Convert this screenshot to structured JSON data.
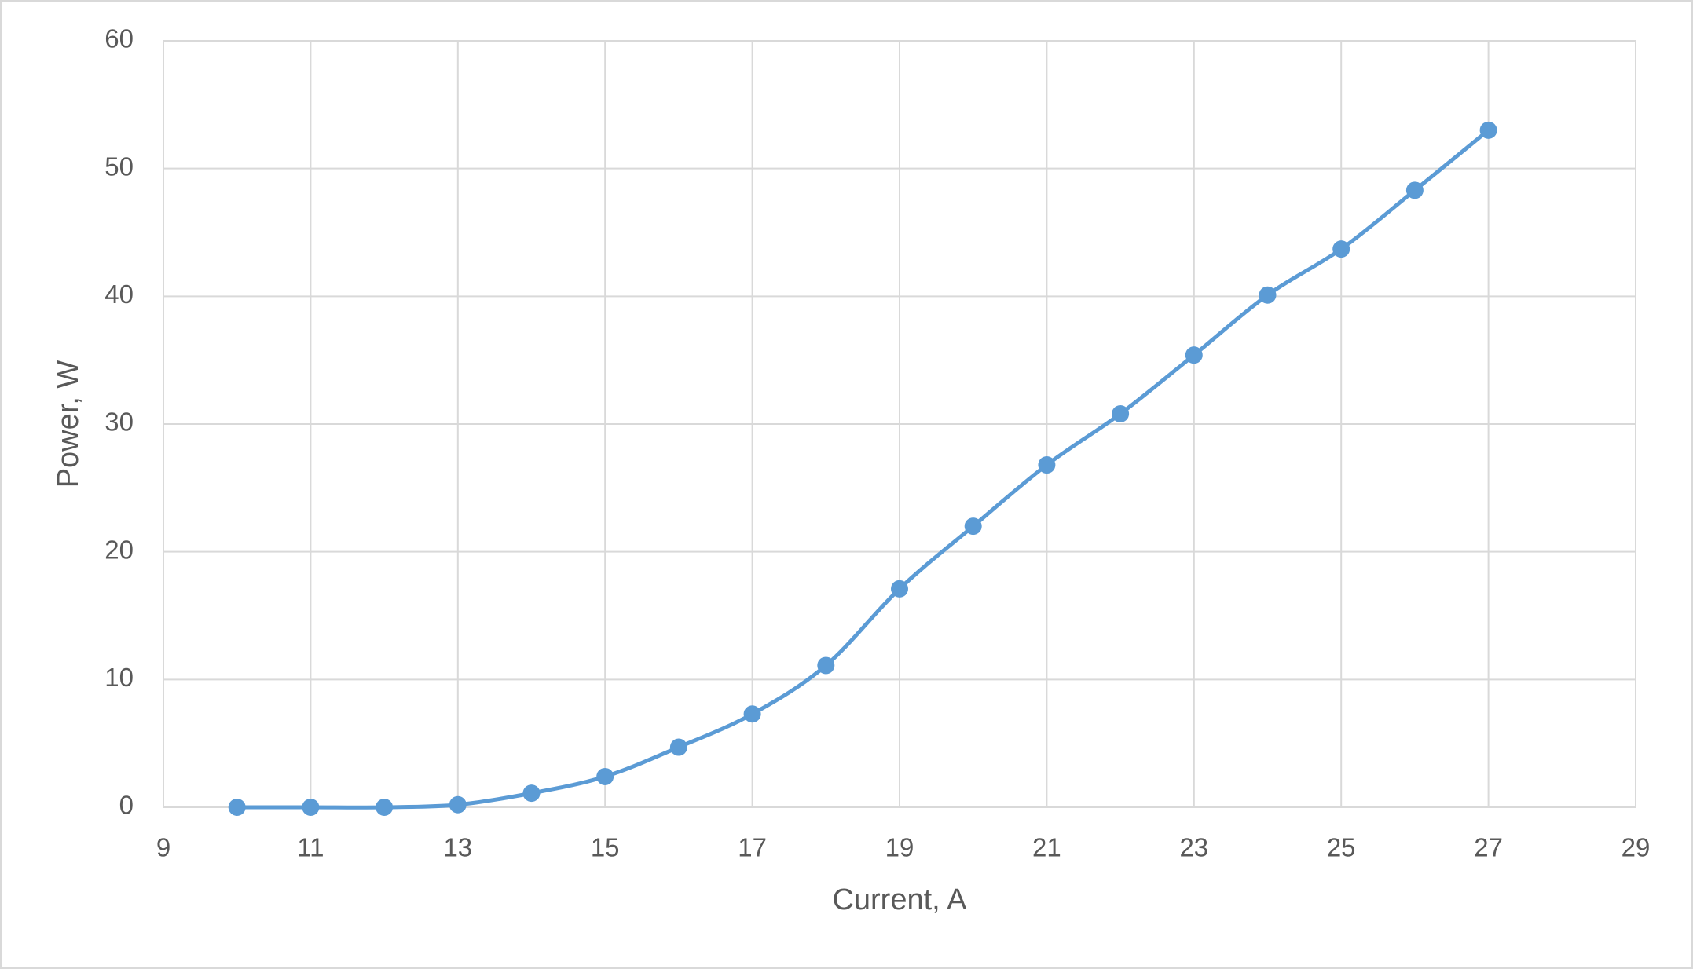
{
  "chart_data": {
    "type": "line",
    "x_label": "Current, A",
    "y_label": "Power, W",
    "x": [
      10,
      11,
      12,
      13,
      14,
      15,
      16,
      17,
      18,
      19,
      20,
      21,
      22,
      23,
      24,
      25,
      26,
      27
    ],
    "values": [
      0,
      0,
      0,
      0.2,
      1.1,
      2.4,
      4.7,
      7.3,
      11.1,
      17.1,
      22,
      26.8,
      30.8,
      35.4,
      40.1,
      43.7,
      48.3,
      53
    ],
    "color": "#5b9bd5",
    "smooth": true,
    "markers": true,
    "xlim": [
      9,
      29
    ],
    "xticks": [
      9,
      11,
      13,
      15,
      17,
      19,
      21,
      23,
      25,
      27,
      29
    ],
    "ylim": [
      0,
      60
    ],
    "yticks": [
      0,
      10,
      20,
      30,
      40,
      50,
      60
    ],
    "grid": true
  }
}
